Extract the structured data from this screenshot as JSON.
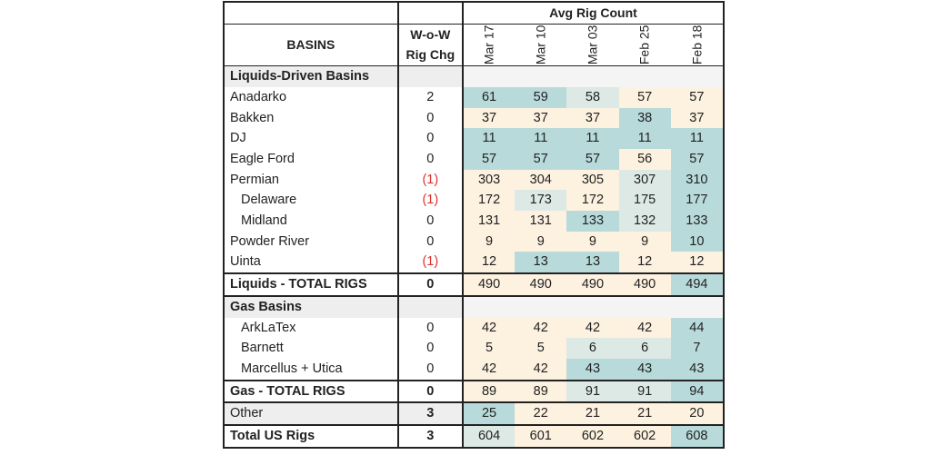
{
  "chart_data": {
    "type": "table",
    "title": "Avg Rig Count",
    "row_header": "BASINS",
    "change_header": [
      "W-o-W",
      "Rig Chg"
    ],
    "columns": [
      "Mar 17",
      "Mar 10",
      "Mar 03",
      "Feb 25",
      "Feb 18"
    ],
    "colors": {
      "high": "#b9dada",
      "mid": "#dde9e4",
      "low": "#fdf1e0",
      "neg_text": "#e03030"
    },
    "rows": [
      {
        "kind": "section",
        "name": "Liquids-Driven Basins"
      },
      {
        "kind": "row",
        "name": "Anadarko",
        "chg": "2",
        "values": [
          "61",
          "59",
          "58",
          "57",
          "57"
        ],
        "shade": [
          "high",
          "high",
          "mid",
          "low",
          "low"
        ]
      },
      {
        "kind": "row",
        "name": "Bakken",
        "chg": "0",
        "values": [
          "37",
          "37",
          "37",
          "38",
          "37"
        ],
        "shade": [
          "low",
          "low",
          "low",
          "high",
          "low"
        ]
      },
      {
        "kind": "row",
        "name": "DJ",
        "chg": "0",
        "values": [
          "11",
          "11",
          "11",
          "11",
          "11"
        ],
        "shade": [
          "high",
          "high",
          "high",
          "high",
          "high"
        ]
      },
      {
        "kind": "row",
        "name": "Eagle Ford",
        "chg": "0",
        "values": [
          "57",
          "57",
          "57",
          "56",
          "57"
        ],
        "shade": [
          "high",
          "high",
          "high",
          "low",
          "high"
        ]
      },
      {
        "kind": "row",
        "name": "Permian",
        "chg": "(1)",
        "values": [
          "303",
          "304",
          "305",
          "307",
          "310"
        ],
        "shade": [
          "low",
          "low",
          "low",
          "mid",
          "high"
        ]
      },
      {
        "kind": "row",
        "name": "Delaware",
        "indent": true,
        "chg": "(1)",
        "values": [
          "172",
          "173",
          "172",
          "175",
          "177"
        ],
        "shade": [
          "low",
          "mid",
          "low",
          "mid",
          "high"
        ]
      },
      {
        "kind": "row",
        "name": "Midland",
        "indent": true,
        "chg": "0",
        "values": [
          "131",
          "131",
          "133",
          "132",
          "133"
        ],
        "shade": [
          "low",
          "low",
          "high",
          "mid",
          "high"
        ]
      },
      {
        "kind": "row",
        "name": "Powder River",
        "chg": "0",
        "values": [
          "9",
          "9",
          "9",
          "9",
          "10"
        ],
        "shade": [
          "low",
          "low",
          "low",
          "low",
          "high"
        ]
      },
      {
        "kind": "row",
        "name": "Uinta",
        "chg": "(1)",
        "values": [
          "12",
          "13",
          "13",
          "12",
          "12"
        ],
        "shade": [
          "low",
          "high",
          "high",
          "low",
          "low"
        ]
      },
      {
        "kind": "total",
        "name": "Liquids - TOTAL RIGS",
        "chg": "0",
        "values": [
          "490",
          "490",
          "490",
          "490",
          "494"
        ],
        "shade": [
          "low",
          "low",
          "low",
          "low",
          "high"
        ]
      },
      {
        "kind": "section",
        "name": "Gas Basins"
      },
      {
        "kind": "row",
        "name": "ArkLaTex",
        "indent": true,
        "chg": "0",
        "values": [
          "42",
          "42",
          "42",
          "42",
          "44"
        ],
        "shade": [
          "low",
          "low",
          "low",
          "low",
          "high"
        ]
      },
      {
        "kind": "row",
        "name": "Barnett",
        "indent": true,
        "chg": "0",
        "values": [
          "5",
          "5",
          "6",
          "6",
          "7"
        ],
        "shade": [
          "low",
          "low",
          "mid",
          "mid",
          "high"
        ]
      },
      {
        "kind": "row",
        "name": "Marcellus + Utica",
        "indent": true,
        "chg": "0",
        "values": [
          "42",
          "42",
          "43",
          "43",
          "43"
        ],
        "shade": [
          "low",
          "low",
          "high",
          "high",
          "high"
        ]
      },
      {
        "kind": "total",
        "name": "Gas - TOTAL RIGS",
        "chg": "0",
        "values": [
          "89",
          "89",
          "91",
          "91",
          "94"
        ],
        "shade": [
          "low",
          "low",
          "mid",
          "mid",
          "high"
        ]
      },
      {
        "kind": "other",
        "name": "Other",
        "chg": "3",
        "values": [
          "25",
          "22",
          "21",
          "21",
          "20"
        ],
        "shade": [
          "high",
          "low",
          "low",
          "low",
          "low"
        ]
      },
      {
        "kind": "grand",
        "name": "Total US Rigs",
        "chg": "3",
        "values": [
          "604",
          "601",
          "602",
          "602",
          "608"
        ],
        "shade": [
          "mid",
          "low",
          "low",
          "low",
          "high"
        ]
      }
    ]
  }
}
